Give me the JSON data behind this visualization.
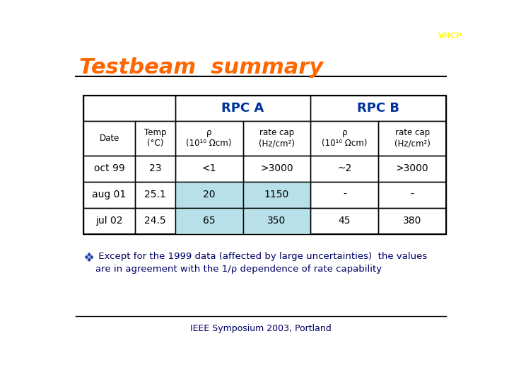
{
  "title": "Testbeam  summary",
  "title_color": "#FF6600",
  "bg_color": "#FFFFFF",
  "header1": "RPC A",
  "header2": "RPC B",
  "header_color": "#003399",
  "col_headers": [
    "Date",
    "Temp\n(°C)",
    "ρ\n(10¹⁰ Ωcm)",
    "rate cap\n(Hz/cm²)",
    "ρ\n(10¹⁰ Ωcm)",
    "rate cap\n(Hz/cm²)"
  ],
  "rows": [
    [
      "oct 99",
      "23",
      "<1",
      ">3000",
      "~2",
      ">3000"
    ],
    [
      "aug 01",
      "25.1",
      "20",
      "1150",
      "-",
      "-"
    ],
    [
      "jul 02",
      "24.5",
      "65",
      "350",
      "45",
      "380"
    ]
  ],
  "highlight_color": "#B8E0E8",
  "highlight_rows": [
    1,
    2
  ],
  "highlight_cols": [
    2,
    3
  ],
  "note_bullet": "❖",
  "note_text": " Except for the 1999 data (affected by large uncertainties)  the values\nare in agreement with the 1/ρ dependence of rate capability",
  "note_color": "#000066",
  "footer": "IEEE Symposium 2003, Portland",
  "footer_color": "#000066",
  "line_color": "#000000"
}
